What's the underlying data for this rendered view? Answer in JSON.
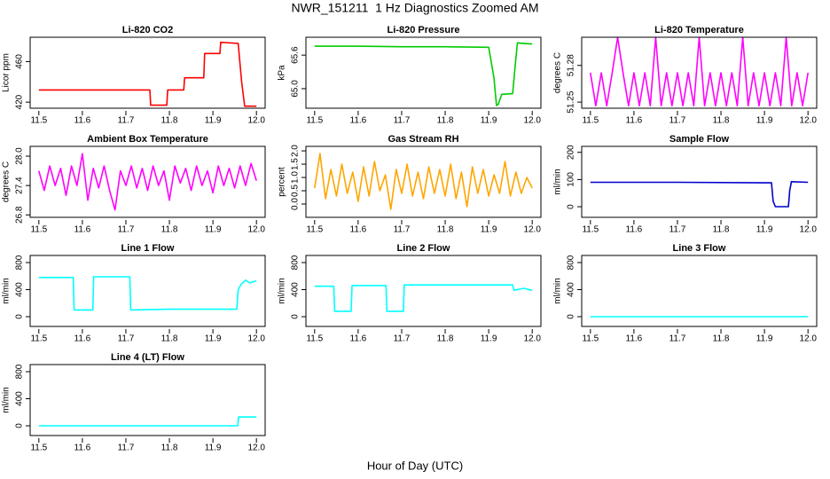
{
  "title": "NWR_151211  1 Hz Diagnostics Zoomed AM",
  "xlabel": "Hour of Day (UTC)",
  "chart_data": [
    {
      "type": "line",
      "title": "Li-820 CO2",
      "ylabel": "Licor ppm",
      "x": [
        11.5,
        11.755,
        11.757,
        11.794,
        11.796,
        11.833,
        11.835,
        11.879,
        11.881,
        11.916,
        11.918,
        11.958,
        11.966,
        11.973,
        12.0
      ],
      "series": [
        {
          "name": "CO2",
          "color": "#ff0000",
          "values": [
            432,
            432,
            417,
            417,
            432,
            432,
            444,
            444,
            468,
            468,
            479,
            478,
            440,
            416,
            416
          ]
        }
      ],
      "xlim": [
        11.48,
        12.02
      ],
      "ylim": [
        414,
        484
      ],
      "xticks": [
        11.5,
        11.6,
        11.7,
        11.8,
        11.9,
        {
          "value": 12,
          "label": "12.0"
        }
      ],
      "yticks": [
        420,
        460
      ]
    },
    {
      "type": "line",
      "title": "Li-820 Pressure",
      "ylabel": "kPa",
      "x": [
        11.5,
        11.6,
        11.7,
        11.8,
        11.9,
        11.912,
        11.918,
        11.922,
        11.93,
        11.955,
        11.962,
        11.966,
        11.98,
        12.0
      ],
      "series": [
        {
          "name": "Pressure",
          "color": "#00cc00",
          "values": [
            65.76,
            65.76,
            65.75,
            65.75,
            65.74,
            65.2,
            64.7,
            64.72,
            64.9,
            64.91,
            65.5,
            65.82,
            65.81,
            65.8
          ]
        }
      ],
      "xlim": [
        11.48,
        12.02
      ],
      "ylim": [
        64.65,
        65.92
      ],
      "xticks": [
        11.5,
        11.6,
        11.7,
        11.8,
        11.9,
        {
          "value": 12,
          "label": "12.0"
        }
      ],
      "yticks": [
        {
          "value": 65,
          "label": "65.0"
        },
        65.6
      ]
    },
    {
      "type": "line",
      "title": "Li-820 Temperature",
      "ylabel": "degrees C",
      "x": [
        11.5,
        11.5125,
        11.525,
        11.5375,
        11.55,
        11.5625,
        11.575,
        11.5875,
        11.6,
        11.6125,
        11.625,
        11.6375,
        11.65,
        11.6625,
        11.675,
        11.6875,
        11.7,
        11.7125,
        11.725,
        11.7375,
        11.75,
        11.7625,
        11.775,
        11.7875,
        11.8,
        11.8125,
        11.825,
        11.8375,
        11.85,
        11.8625,
        11.875,
        11.8875,
        11.9,
        11.9125,
        11.925,
        11.9375,
        11.95,
        11.9625,
        11.975,
        11.9875,
        12.0
      ],
      "series": [
        {
          "name": "Temperature",
          "color": "#ff00ff",
          "values": [
            51.274,
            51.247,
            51.274,
            51.247,
            51.274,
            51.303,
            51.274,
            51.247,
            51.274,
            51.247,
            51.274,
            51.247,
            51.303,
            51.247,
            51.274,
            51.247,
            51.274,
            51.247,
            51.274,
            51.247,
            51.303,
            51.247,
            51.274,
            51.247,
            51.274,
            51.247,
            51.274,
            51.247,
            51.303,
            51.247,
            51.274,
            51.247,
            51.274,
            51.247,
            51.274,
            51.247,
            51.303,
            51.247,
            51.274,
            51.247,
            51.274
          ]
        }
      ],
      "xlim": [
        11.48,
        12.02
      ],
      "ylim": [
        51.245,
        51.303
      ],
      "xticks": [
        11.5,
        11.6,
        11.7,
        11.8,
        11.9,
        {
          "value": 12,
          "label": "12.0"
        }
      ],
      "yticks": [
        51.25,
        51.28
      ]
    },
    {
      "type": "line",
      "title": "Ambient Box Temperature",
      "ylabel": "degrees C",
      "x": [
        11.5,
        11.5125,
        11.525,
        11.5375,
        11.55,
        11.5625,
        11.575,
        11.5875,
        11.6,
        11.6125,
        11.625,
        11.6375,
        11.65,
        11.6625,
        11.675,
        11.6875,
        11.7,
        11.7125,
        11.725,
        11.7375,
        11.75,
        11.7625,
        11.775,
        11.7875,
        11.8,
        11.8125,
        11.825,
        11.8375,
        11.85,
        11.8625,
        11.875,
        11.8875,
        11.9,
        11.9125,
        11.925,
        11.9375,
        11.95,
        11.9625,
        11.975,
        11.9875,
        12.0
      ],
      "series": [
        {
          "name": "Ambient",
          "color": "#ff00ff",
          "values": [
            27.7,
            27.3,
            27.8,
            27.4,
            27.75,
            27.2,
            27.8,
            27.4,
            28.05,
            27.1,
            27.75,
            27.35,
            27.8,
            27.3,
            26.9,
            27.7,
            27.4,
            27.8,
            27.35,
            27.75,
            27.3,
            27.8,
            27.4,
            27.7,
            27.1,
            27.8,
            27.45,
            27.75,
            27.3,
            27.8,
            27.4,
            27.7,
            27.25,
            27.8,
            27.4,
            27.75,
            27.35,
            27.8,
            27.4,
            27.85,
            27.5
          ]
        }
      ],
      "xlim": [
        11.48,
        12.02
      ],
      "ylim": [
        26.75,
        28.2
      ],
      "xticks": [
        11.5,
        11.6,
        11.7,
        11.8,
        11.9,
        {
          "value": 12,
          "label": "12.0"
        }
      ],
      "yticks": [
        26.8,
        27.4,
        {
          "value": 28,
          "label": "28.0"
        }
      ]
    },
    {
      "type": "line",
      "title": "Gas Stream RH",
      "ylabel": "percent",
      "x": [
        11.5,
        11.5125,
        11.525,
        11.5375,
        11.55,
        11.5625,
        11.575,
        11.5875,
        11.6,
        11.6125,
        11.625,
        11.6375,
        11.65,
        11.6625,
        11.675,
        11.6875,
        11.7,
        11.7125,
        11.725,
        11.7375,
        11.75,
        11.7625,
        11.775,
        11.7875,
        11.8,
        11.8125,
        11.825,
        11.8375,
        11.85,
        11.8625,
        11.875,
        11.8875,
        11.9,
        11.9125,
        11.925,
        11.9375,
        11.95,
        11.9625,
        11.975,
        11.9875,
        12.0
      ],
      "series": [
        {
          "name": "RH",
          "color": "#ffa500",
          "values": [
            0.6,
            1.9,
            0.2,
            1.3,
            0.3,
            1.5,
            0.4,
            1.2,
            0.1,
            1.4,
            0.3,
            1.6,
            0.5,
            1.1,
            -0.2,
            1.3,
            0.4,
            1.5,
            0.3,
            1.2,
            0.2,
            1.4,
            0.4,
            1.3,
            0.3,
            1.5,
            0.2,
            1.2,
            -0.1,
            1.4,
            0.4,
            1.3,
            0.3,
            1.1,
            0.4,
            1.6,
            0.3,
            1.2,
            0.4,
            1.0,
            0.6
          ]
        }
      ],
      "xlim": [
        11.48,
        12.02
      ],
      "ylim": [
        -0.5,
        2.17
      ],
      "xticks": [
        11.5,
        11.6,
        11.7,
        11.8,
        11.9,
        {
          "value": 12,
          "label": "12.0"
        }
      ],
      "yticks": [
        {
          "value": 0,
          "label": "0.0"
        },
        0.5,
        {
          "value": 1,
          "label": "1.0"
        },
        1.5,
        {
          "value": 2,
          "label": "2.0"
        }
      ]
    },
    {
      "type": "line",
      "title": "Sample Flow",
      "ylabel": "ml/min",
      "x": [
        11.5,
        11.7,
        11.9,
        11.916,
        11.92,
        11.925,
        11.955,
        11.958,
        11.962,
        12.0
      ],
      "series": [
        {
          "name": "Sample",
          "color": "#0000cd",
          "values": [
            90,
            90,
            88,
            88,
            20,
            0,
            0,
            60,
            92,
            90
          ]
        }
      ],
      "xlim": [
        11.48,
        12.02
      ],
      "ylim": [
        -39,
        222
      ],
      "xticks": [
        11.5,
        11.6,
        11.7,
        11.8,
        11.9,
        {
          "value": 12,
          "label": "12.0"
        }
      ],
      "yticks": [
        0,
        100,
        200
      ]
    },
    {
      "type": "line",
      "title": "Line 1 Flow",
      "ylabel": "ml/min",
      "x": [
        11.5,
        11.579,
        11.581,
        11.624,
        11.626,
        11.709,
        11.711,
        11.8,
        11.955,
        11.958,
        11.965,
        11.975,
        11.985,
        12.0
      ],
      "series": [
        {
          "name": "Line 1",
          "color": "#00ffff",
          "values": [
            580,
            580,
            100,
            100,
            590,
            590,
            100,
            110,
            110,
            400,
            480,
            540,
            500,
            530
          ]
        }
      ],
      "xlim": [
        11.48,
        12.02
      ],
      "ylim": [
        -144,
        905
      ],
      "xticks": [
        11.5,
        11.6,
        11.7,
        11.8,
        11.9,
        {
          "value": 12,
          "label": "12.0"
        }
      ],
      "yticks": [
        0,
        400,
        800
      ]
    },
    {
      "type": "line",
      "title": "Line 2 Flow",
      "ylabel": "ml/min",
      "x": [
        11.5,
        11.544,
        11.546,
        11.584,
        11.586,
        11.664,
        11.666,
        11.704,
        11.706,
        11.955,
        11.958,
        11.98,
        12.0
      ],
      "series": [
        {
          "name": "Line 2",
          "color": "#00ffff",
          "values": [
            450,
            450,
            80,
            80,
            460,
            460,
            80,
            80,
            470,
            470,
            390,
            420,
            390
          ]
        }
      ],
      "xlim": [
        11.48,
        12.02
      ],
      "ylim": [
        -144,
        905
      ],
      "xticks": [
        11.5,
        11.6,
        11.7,
        11.8,
        11.9,
        {
          "value": 12,
          "label": "12.0"
        }
      ],
      "yticks": [
        0,
        400,
        800
      ]
    },
    {
      "type": "line",
      "title": "Line 3 Flow",
      "ylabel": "ml/min",
      "x": [
        11.5,
        12.0
      ],
      "series": [
        {
          "name": "Line 3",
          "color": "#00ffff",
          "values": [
            0,
            0
          ]
        }
      ],
      "xlim": [
        11.48,
        12.02
      ],
      "ylim": [
        -144,
        905
      ],
      "xticks": [
        11.5,
        11.6,
        11.7,
        11.8,
        11.9,
        {
          "value": 12,
          "label": "12.0"
        }
      ],
      "yticks": [
        0,
        400,
        800
      ]
    },
    {
      "type": "line",
      "title": "Line 4 (LT) Flow",
      "ylabel": "ml/min",
      "x": [
        11.5,
        11.957,
        11.959,
        12.0
      ],
      "series": [
        {
          "name": "Line 4",
          "color": "#00ffff",
          "values": [
            0,
            0,
            130,
            130
          ]
        }
      ],
      "xlim": [
        11.48,
        12.02
      ],
      "ylim": [
        -144,
        905
      ],
      "xticks": [
        11.5,
        11.6,
        11.7,
        11.8,
        11.9,
        {
          "value": 12,
          "label": "12.0"
        }
      ],
      "yticks": [
        0,
        400,
        800
      ]
    }
  ]
}
